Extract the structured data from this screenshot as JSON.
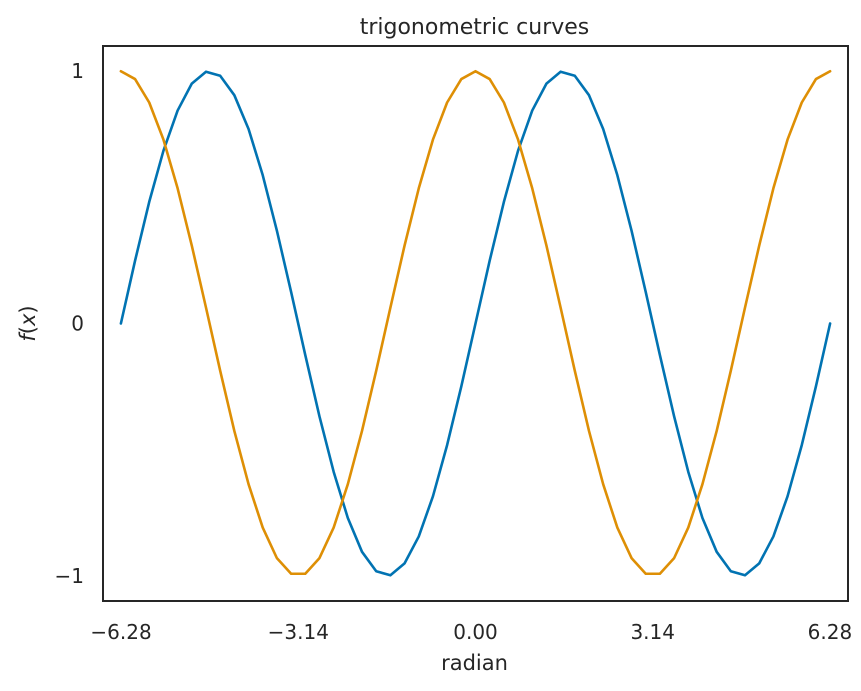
{
  "chart_data": {
    "type": "line",
    "title": "trigonometric curves",
    "xlabel": "radian",
    "ylabel": "f(x)",
    "xlim": [
      -6.6,
      6.6
    ],
    "ylim": [
      -1.1,
      1.1
    ],
    "xticks": [
      -6.28,
      -3.14,
      0.0,
      3.14,
      6.28
    ],
    "xtick_labels": [
      "−6.28",
      "−3.14",
      "0.00",
      "3.14",
      "6.28"
    ],
    "yticks": [
      1,
      0,
      -1
    ],
    "ytick_labels": [
      "1",
      "0",
      "−1"
    ],
    "grid": false,
    "legend": false,
    "series": [
      {
        "color": "#0173b2",
        "x": [
          -6.283,
          -6.032,
          -5.781,
          -5.529,
          -5.278,
          -5.027,
          -4.775,
          -4.524,
          -4.273,
          -4.021,
          -3.77,
          -3.519,
          -3.267,
          -3.016,
          -2.765,
          -2.513,
          -2.262,
          -2.011,
          -1.759,
          -1.508,
          -1.257,
          -1.005,
          -0.754,
          -0.503,
          -0.251,
          0.0,
          0.251,
          0.503,
          0.754,
          1.005,
          1.257,
          1.508,
          1.759,
          2.011,
          2.262,
          2.513,
          2.765,
          3.016,
          3.267,
          3.519,
          3.77,
          4.021,
          4.273,
          4.524,
          4.775,
          5.027,
          5.278,
          5.529,
          5.781,
          6.032,
          6.283
        ],
        "y": [
          0.0,
          0.249,
          0.482,
          0.685,
          0.844,
          0.951,
          0.998,
          0.982,
          0.905,
          0.771,
          0.588,
          0.368,
          0.125,
          -0.125,
          -0.368,
          -0.588,
          -0.771,
          -0.905,
          -0.982,
          -0.998,
          -0.951,
          -0.844,
          -0.685,
          -0.482,
          -0.249,
          0.0,
          0.249,
          0.482,
          0.685,
          0.844,
          0.951,
          0.998,
          0.982,
          0.905,
          0.771,
          0.588,
          0.368,
          0.125,
          -0.125,
          -0.368,
          -0.588,
          -0.771,
          -0.905,
          -0.982,
          -0.998,
          -0.951,
          -0.844,
          -0.685,
          -0.482,
          -0.249,
          0.0
        ]
      },
      {
        "color": "#de8f05",
        "x": [
          -6.283,
          -6.032,
          -5.781,
          -5.529,
          -5.278,
          -5.027,
          -4.775,
          -4.524,
          -4.273,
          -4.021,
          -3.77,
          -3.519,
          -3.267,
          -3.016,
          -2.765,
          -2.513,
          -2.262,
          -2.011,
          -1.759,
          -1.508,
          -1.257,
          -1.005,
          -0.754,
          -0.503,
          -0.251,
          0.0,
          0.251,
          0.503,
          0.754,
          1.005,
          1.257,
          1.508,
          1.759,
          2.011,
          2.262,
          2.513,
          2.765,
          3.016,
          3.267,
          3.519,
          3.77,
          4.021,
          4.273,
          4.524,
          4.775,
          5.027,
          5.278,
          5.529,
          5.781,
          6.032,
          6.283
        ],
        "y": [
          1.0,
          0.969,
          0.876,
          0.729,
          0.536,
          0.309,
          0.063,
          -0.187,
          -0.426,
          -0.637,
          -0.809,
          -0.93,
          -0.992,
          -0.992,
          -0.93,
          -0.809,
          -0.637,
          -0.426,
          -0.187,
          0.063,
          0.309,
          0.536,
          0.729,
          0.876,
          0.969,
          1.0,
          0.969,
          0.876,
          0.729,
          0.536,
          0.309,
          0.063,
          -0.187,
          -0.426,
          -0.637,
          -0.809,
          -0.93,
          -0.992,
          -0.992,
          -0.93,
          -0.809,
          -0.637,
          -0.426,
          -0.187,
          0.063,
          0.309,
          0.536,
          0.729,
          0.876,
          0.969,
          1.0
        ]
      }
    ]
  }
}
